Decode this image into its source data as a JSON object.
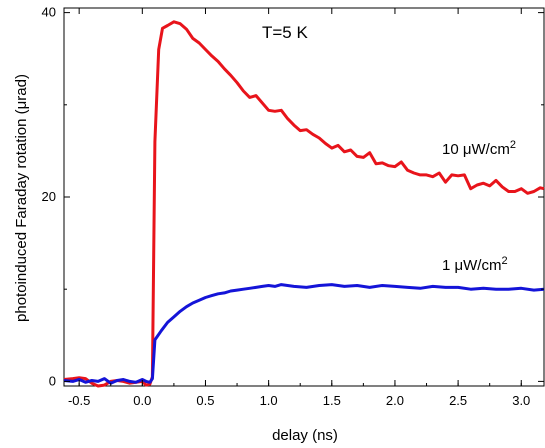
{
  "chart_data": {
    "type": "line",
    "title": "",
    "xlabel": "delay (ns)",
    "ylabel": "photoinduced Faraday rotation (μrad)",
    "xlim": [
      -0.62,
      3.18
    ],
    "ylim": [
      -0.5,
      40.5
    ],
    "grid": false,
    "x_ticks": [
      -0.5,
      0.0,
      0.5,
      1.0,
      1.5,
      2.0,
      2.5,
      3.0
    ],
    "x_tick_labels": [
      "-0.5",
      "0.0",
      "0.5",
      "1.0",
      "1.5",
      "2.0",
      "2.5",
      "3.0"
    ],
    "y_ticks": [
      0,
      20,
      40
    ],
    "y_tick_labels": [
      "0",
      "20",
      "40"
    ],
    "annotations": {
      "temperature": "T=5 K",
      "high_power_label": "10 μW/cm",
      "low_power_label": "1 μW/cm",
      "superscript": "2"
    },
    "series": [
      {
        "color": "#e8141b",
        "x": [
          -0.62,
          -0.55,
          -0.5,
          -0.45,
          -0.4,
          -0.35,
          -0.3,
          -0.25,
          -0.2,
          -0.15,
          -0.1,
          -0.05,
          0.0,
          0.03,
          0.06,
          0.08,
          0.1,
          0.13,
          0.16,
          0.2,
          0.25,
          0.3,
          0.35,
          0.4,
          0.45,
          0.5,
          0.55,
          0.6,
          0.65,
          0.7,
          0.75,
          0.8,
          0.85,
          0.9,
          1.0,
          1.05,
          1.1,
          1.15,
          1.2,
          1.25,
          1.3,
          1.35,
          1.4,
          1.45,
          1.5,
          1.55,
          1.6,
          1.65,
          1.7,
          1.75,
          1.8,
          1.85,
          1.9,
          1.95,
          2.0,
          2.05,
          2.1,
          2.15,
          2.2,
          2.25,
          2.3,
          2.35,
          2.4,
          2.45,
          2.5,
          2.55,
          2.6,
          2.65,
          2.7,
          2.75,
          2.8,
          2.85,
          2.9,
          2.95,
          3.0,
          3.05,
          3.1,
          3.15,
          3.18
        ],
        "values": [
          0.2,
          0.3,
          0.4,
          0.3,
          -0.2,
          -0.5,
          -0.4,
          0.0,
          0.1,
          0.0,
          -0.2,
          -0.1,
          0.0,
          -0.4,
          -0.3,
          0.5,
          26.0,
          36.0,
          38.3,
          38.6,
          39.0,
          38.8,
          38.2,
          37.2,
          36.7,
          36.0,
          35.3,
          34.7,
          33.9,
          33.2,
          32.4,
          31.5,
          30.8,
          31.0,
          29.4,
          29.3,
          29.4,
          28.5,
          27.8,
          27.2,
          27.3,
          26.8,
          26.4,
          25.8,
          25.3,
          25.6,
          24.9,
          25.1,
          24.4,
          24.3,
          24.8,
          23.6,
          23.7,
          23.4,
          23.3,
          23.8,
          22.9,
          22.6,
          22.4,
          22.4,
          22.2,
          22.6,
          21.6,
          22.4,
          22.3,
          22.4,
          20.9,
          21.3,
          21.5,
          21.2,
          21.8,
          21.1,
          20.6,
          20.6,
          20.9,
          20.4,
          20.6,
          21.0,
          20.9
        ]
      },
      {
        "color": "#1414d8",
        "x": [
          -0.62,
          -0.55,
          -0.5,
          -0.45,
          -0.4,
          -0.35,
          -0.3,
          -0.25,
          -0.2,
          -0.15,
          -0.1,
          -0.05,
          0.0,
          0.03,
          0.06,
          0.08,
          0.1,
          0.15,
          0.2,
          0.25,
          0.3,
          0.35,
          0.4,
          0.45,
          0.5,
          0.55,
          0.6,
          0.65,
          0.7,
          0.75,
          0.8,
          0.85,
          0.9,
          0.95,
          1.0,
          1.05,
          1.1,
          1.15,
          1.2,
          1.3,
          1.4,
          1.5,
          1.6,
          1.7,
          1.8,
          1.9,
          2.0,
          2.1,
          2.2,
          2.3,
          2.4,
          2.5,
          2.6,
          2.7,
          2.8,
          2.9,
          3.0,
          3.1,
          3.18
        ],
        "values": [
          0.1,
          0.0,
          0.2,
          -0.1,
          0.1,
          0.0,
          0.3,
          -0.2,
          0.1,
          0.2,
          0.0,
          -0.1,
          0.2,
          0.0,
          -0.1,
          0.3,
          4.5,
          5.5,
          6.4,
          7.0,
          7.6,
          8.1,
          8.5,
          8.8,
          9.1,
          9.3,
          9.5,
          9.6,
          9.8,
          9.9,
          10.0,
          10.1,
          10.2,
          10.3,
          10.4,
          10.3,
          10.5,
          10.4,
          10.3,
          10.2,
          10.4,
          10.5,
          10.3,
          10.4,
          10.2,
          10.4,
          10.3,
          10.2,
          10.1,
          10.3,
          10.2,
          10.2,
          10.0,
          10.1,
          10.0,
          10.0,
          10.1,
          9.9,
          10.0
        ]
      }
    ]
  }
}
